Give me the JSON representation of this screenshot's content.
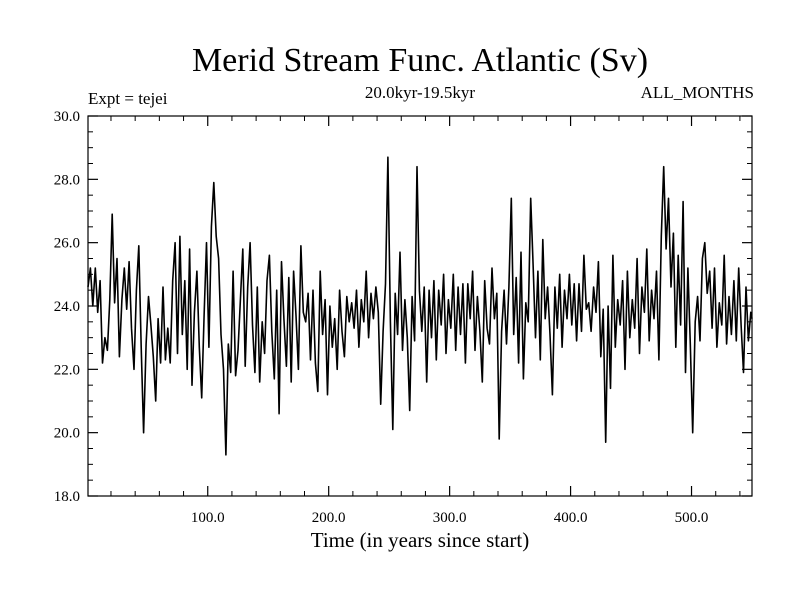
{
  "chart_data": {
    "type": "line",
    "title": "Merid Stream Func. Atlantic (Sv)",
    "subtitle": "20.0kyr-19.5kyr",
    "left_label": "Expt = tejei",
    "right_label": "ALL_MONTHS",
    "xlabel": "Time (in years since start)",
    "ylabel": "",
    "xlim": [
      1,
      550
    ],
    "ylim": [
      18.0,
      30.0
    ],
    "x_ticks": [
      100,
      200,
      300,
      400,
      500
    ],
    "x_tick_labels": [
      "100.0",
      "200.0",
      "300.0",
      "400.0",
      "500.0"
    ],
    "y_ticks": [
      18,
      20,
      22,
      24,
      26,
      28,
      30
    ],
    "y_tick_labels": [
      "18.0",
      "20.0",
      "22.0",
      "24.0",
      "26.0",
      "28.0",
      "30.0"
    ],
    "x_minor_step": 20,
    "y_minor_step": 0.5,
    "grid": false,
    "series": [
      {
        "color": "#000000",
        "points": [
          [
            1,
            24.6
          ],
          [
            3,
            25.2
          ],
          [
            5,
            24.0
          ],
          [
            7,
            25.2
          ],
          [
            9,
            23.8
          ],
          [
            11,
            24.8
          ],
          [
            13,
            22.2
          ],
          [
            15,
            23.0
          ],
          [
            17,
            22.6
          ],
          [
            19,
            24.2
          ],
          [
            21,
            26.9
          ],
          [
            23,
            24.1
          ],
          [
            25,
            25.5
          ],
          [
            27,
            22.4
          ],
          [
            29,
            24.2
          ],
          [
            31,
            25.2
          ],
          [
            33,
            23.9
          ],
          [
            35,
            25.4
          ],
          [
            37,
            23.3
          ],
          [
            39,
            22.0
          ],
          [
            41,
            24.5
          ],
          [
            43,
            25.9
          ],
          [
            45,
            22.7
          ],
          [
            47,
            20.0
          ],
          [
            49,
            22.8
          ],
          [
            51,
            24.3
          ],
          [
            53,
            23.4
          ],
          [
            55,
            22.4
          ],
          [
            57,
            21.0
          ],
          [
            59,
            23.6
          ],
          [
            61,
            22.2
          ],
          [
            63,
            24.6
          ],
          [
            65,
            22.3
          ],
          [
            67,
            23.3
          ],
          [
            69,
            22.2
          ],
          [
            71,
            24.8
          ],
          [
            73,
            26.0
          ],
          [
            75,
            22.5
          ],
          [
            77,
            26.2
          ],
          [
            79,
            23.1
          ],
          [
            81,
            24.8
          ],
          [
            83,
            22.0
          ],
          [
            85,
            25.8
          ],
          [
            87,
            21.5
          ],
          [
            89,
            23.8
          ],
          [
            91,
            25.1
          ],
          [
            93,
            22.7
          ],
          [
            95,
            21.1
          ],
          [
            97,
            23.7
          ],
          [
            99,
            26.0
          ],
          [
            101,
            22.7
          ],
          [
            103,
            26.5
          ],
          [
            105,
            27.9
          ],
          [
            107,
            26.2
          ],
          [
            109,
            25.5
          ],
          [
            111,
            23.1
          ],
          [
            113,
            22.0
          ],
          [
            115,
            19.3
          ],
          [
            117,
            22.8
          ],
          [
            119,
            21.9
          ],
          [
            121,
            25.1
          ],
          [
            123,
            21.8
          ],
          [
            125,
            22.6
          ],
          [
            127,
            24.2
          ],
          [
            129,
            25.8
          ],
          [
            131,
            22.1
          ],
          [
            133,
            24.6
          ],
          [
            135,
            26.0
          ],
          [
            137,
            23.4
          ],
          [
            139,
            21.9
          ],
          [
            141,
            24.6
          ],
          [
            143,
            21.6
          ],
          [
            145,
            23.5
          ],
          [
            147,
            22.5
          ],
          [
            149,
            24.8
          ],
          [
            151,
            25.6
          ],
          [
            153,
            23.2
          ],
          [
            155,
            21.7
          ],
          [
            157,
            24.5
          ],
          [
            159,
            20.6
          ],
          [
            161,
            25.4
          ],
          [
            163,
            23.6
          ],
          [
            165,
            22.1
          ],
          [
            167,
            24.9
          ],
          [
            169,
            21.6
          ],
          [
            171,
            25.1
          ],
          [
            173,
            23.7
          ],
          [
            175,
            22.0
          ],
          [
            177,
            25.9
          ],
          [
            179,
            23.8
          ],
          [
            181,
            23.5
          ],
          [
            183,
            24.4
          ],
          [
            185,
            22.3
          ],
          [
            187,
            24.5
          ],
          [
            189,
            22.2
          ],
          [
            191,
            21.3
          ],
          [
            193,
            25.1
          ],
          [
            195,
            23.1
          ],
          [
            197,
            24.2
          ],
          [
            199,
            21.2
          ],
          [
            201,
            24.0
          ],
          [
            203,
            22.7
          ],
          [
            205,
            23.6
          ],
          [
            207,
            22.0
          ],
          [
            209,
            24.5
          ],
          [
            211,
            23.2
          ],
          [
            213,
            22.4
          ],
          [
            215,
            24.3
          ],
          [
            217,
            23.5
          ],
          [
            219,
            24.1
          ],
          [
            221,
            23.3
          ],
          [
            223,
            24.5
          ],
          [
            225,
            22.7
          ],
          [
            227,
            24.2
          ],
          [
            229,
            23.5
          ],
          [
            231,
            25.1
          ],
          [
            233,
            23.0
          ],
          [
            235,
            24.4
          ],
          [
            237,
            23.6
          ],
          [
            239,
            24.6
          ],
          [
            241,
            23.8
          ],
          [
            243,
            20.9
          ],
          [
            245,
            23.2
          ],
          [
            247,
            24.7
          ],
          [
            249,
            28.7
          ],
          [
            251,
            23.5
          ],
          [
            253,
            20.1
          ],
          [
            255,
            24.4
          ],
          [
            257,
            23.1
          ],
          [
            259,
            25.7
          ],
          [
            261,
            22.6
          ],
          [
            263,
            24.2
          ],
          [
            265,
            23.0
          ],
          [
            267,
            20.7
          ],
          [
            269,
            24.3
          ],
          [
            271,
            22.9
          ],
          [
            273,
            28.4
          ],
          [
            275,
            24.5
          ],
          [
            277,
            23.2
          ],
          [
            279,
            24.6
          ],
          [
            281,
            21.6
          ],
          [
            283,
            24.5
          ],
          [
            285,
            23.0
          ],
          [
            287,
            24.8
          ],
          [
            289,
            22.3
          ],
          [
            291,
            24.5
          ],
          [
            293,
            23.4
          ],
          [
            295,
            25.0
          ],
          [
            297,
            22.5
          ],
          [
            299,
            24.2
          ],
          [
            301,
            23.3
          ],
          [
            303,
            25.0
          ],
          [
            305,
            22.6
          ],
          [
            307,
            24.6
          ],
          [
            309,
            23.1
          ],
          [
            311,
            24.7
          ],
          [
            313,
            22.2
          ],
          [
            315,
            24.7
          ],
          [
            317,
            23.6
          ],
          [
            319,
            25.1
          ],
          [
            321,
            22.6
          ],
          [
            323,
            24.3
          ],
          [
            325,
            23.2
          ],
          [
            327,
            21.6
          ],
          [
            329,
            24.8
          ],
          [
            331,
            23.3
          ],
          [
            333,
            22.8
          ],
          [
            335,
            25.2
          ],
          [
            337,
            23.6
          ],
          [
            339,
            24.4
          ],
          [
            341,
            19.8
          ],
          [
            343,
            23.2
          ],
          [
            345,
            24.5
          ],
          [
            347,
            22.8
          ],
          [
            349,
            24.6
          ],
          [
            351,
            27.4
          ],
          [
            353,
            23.1
          ],
          [
            355,
            24.9
          ],
          [
            357,
            22.2
          ],
          [
            359,
            25.7
          ],
          [
            361,
            21.7
          ],
          [
            363,
            24.1
          ],
          [
            365,
            23.5
          ],
          [
            367,
            27.4
          ],
          [
            369,
            25.3
          ],
          [
            371,
            23.0
          ],
          [
            373,
            25.1
          ],
          [
            375,
            22.3
          ],
          [
            377,
            26.1
          ],
          [
            379,
            23.6
          ],
          [
            381,
            24.6
          ],
          [
            383,
            23.1
          ],
          [
            385,
            21.2
          ],
          [
            387,
            24.6
          ],
          [
            389,
            23.3
          ],
          [
            391,
            25.0
          ],
          [
            393,
            22.7
          ],
          [
            395,
            24.5
          ],
          [
            397,
            23.6
          ],
          [
            399,
            25.0
          ],
          [
            401,
            23.4
          ],
          [
            403,
            24.7
          ],
          [
            405,
            22.9
          ],
          [
            407,
            24.7
          ],
          [
            409,
            23.2
          ],
          [
            411,
            25.6
          ],
          [
            413,
            23.9
          ],
          [
            415,
            24.1
          ],
          [
            417,
            23.2
          ],
          [
            419,
            24.6
          ],
          [
            421,
            23.8
          ],
          [
            423,
            25.4
          ],
          [
            425,
            22.4
          ],
          [
            427,
            23.9
          ],
          [
            429,
            19.7
          ],
          [
            431,
            24.0
          ],
          [
            433,
            21.4
          ],
          [
            435,
            25.6
          ],
          [
            437,
            22.7
          ],
          [
            439,
            24.2
          ],
          [
            441,
            23.4
          ],
          [
            443,
            24.8
          ],
          [
            445,
            22.0
          ],
          [
            447,
            25.1
          ],
          [
            449,
            23.0
          ],
          [
            451,
            24.2
          ],
          [
            453,
            23.3
          ],
          [
            455,
            25.5
          ],
          [
            457,
            22.5
          ],
          [
            459,
            24.6
          ],
          [
            461,
            23.8
          ],
          [
            463,
            25.8
          ],
          [
            465,
            22.9
          ],
          [
            467,
            24.5
          ],
          [
            469,
            23.6
          ],
          [
            471,
            25.1
          ],
          [
            473,
            22.3
          ],
          [
            475,
            26.2
          ],
          [
            477,
            28.4
          ],
          [
            479,
            25.8
          ],
          [
            481,
            27.4
          ],
          [
            483,
            24.6
          ],
          [
            485,
            26.3
          ],
          [
            487,
            22.7
          ],
          [
            489,
            25.6
          ],
          [
            491,
            23.4
          ],
          [
            493,
            27.3
          ],
          [
            495,
            21.9
          ],
          [
            497,
            25.2
          ],
          [
            499,
            22.8
          ],
          [
            501,
            20.0
          ],
          [
            503,
            23.5
          ],
          [
            505,
            24.3
          ],
          [
            507,
            22.9
          ],
          [
            509,
            25.5
          ],
          [
            511,
            26.0
          ],
          [
            513,
            24.4
          ],
          [
            515,
            25.1
          ],
          [
            517,
            23.3
          ],
          [
            519,
            25.2
          ],
          [
            521,
            22.7
          ],
          [
            523,
            24.1
          ],
          [
            525,
            23.4
          ],
          [
            527,
            25.6
          ],
          [
            529,
            22.8
          ],
          [
            531,
            24.3
          ],
          [
            533,
            23.1
          ],
          [
            535,
            24.8
          ],
          [
            537,
            22.9
          ],
          [
            539,
            25.2
          ],
          [
            541,
            23.4
          ],
          [
            543,
            21.9
          ],
          [
            545,
            24.6
          ],
          [
            547,
            22.9
          ],
          [
            549,
            23.8
          ],
          [
            550,
            23.6
          ]
        ]
      }
    ]
  }
}
